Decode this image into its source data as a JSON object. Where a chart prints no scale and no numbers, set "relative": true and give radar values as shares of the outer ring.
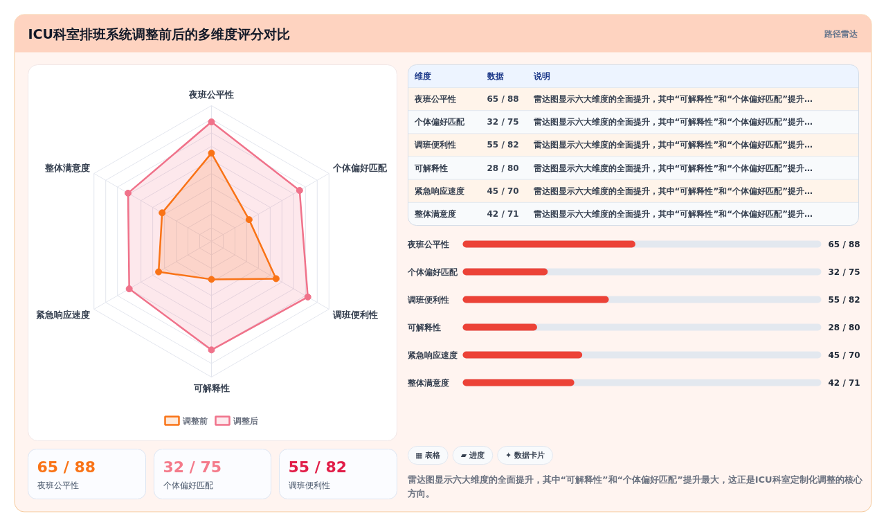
{
  "chart_data": [
    {
      "type": "other",
      "title": "ICU科室排班系统调整前后的多维度评分对比",
      "annotations": [
        "路径雷达"
      ]
    },
    {
      "type": "radar",
      "categories": [
        "夜班公平性",
        "个体偏好匹配",
        "调班便利性",
        "可解释性",
        "紧急响应速度",
        "整体满意度"
      ],
      "series": [
        {
          "name": "调整前",
          "color": "#f97316",
          "values": [
            0.65,
            0.32,
            0.55,
            0.28,
            0.45,
            0.42
          ]
        },
        {
          "name": "调整后",
          "color": "#f0728a",
          "values": [
            0.88,
            0.75,
            0.82,
            0.8,
            0.7,
            0.71
          ]
        }
      ],
      "relative": true,
      "grid": true,
      "legend": "bottom",
      "marker": "circle"
    },
    {
      "type": "other",
      "categories": [
        "维度",
        "数据",
        "说明"
      ],
      "annotations": [
        "夜班公平性",
        "65 / 88",
        "雷达图显示六大维度的全面提升，其中“可解释性”和“个体偏好匹配”提升…",
        "个体偏好匹配",
        "32 / 75",
        "雷达图显示六大维度的全面提升，其中“可解释性”和“个体偏好匹配”提升…",
        "调班便利性",
        "55 / 82",
        "雷达图显示六大维度的全面提升，其中“可解释性”和“个体偏好匹配”提升…",
        "可解释性",
        "28 / 80",
        "雷达图显示六大维度的全面提升，其中“可解释性”和“个体偏好匹配”提升…",
        "紧急响应速度",
        "45 / 70",
        "雷达图显示六大维度的全面提升，其中“可解释性”和“个体偏好匹配”提升…",
        "整体满意度",
        "42 / 71",
        "雷达图显示六大维度的全面提升，其中“可解释性”和“个体偏好匹配”提升…"
      ]
    },
    {
      "type": "bar",
      "orientation": "horizontal",
      "categories": [
        "夜班公平性",
        "个体偏好匹配",
        "调班便利性",
        "可解释性",
        "紧急响应速度",
        "整体满意度"
      ],
      "values": [
        65,
        32,
        55,
        28,
        45,
        42
      ],
      "color": "#ec4237",
      "value_labels": [
        "65 / 88",
        "32 / 75",
        "55 / 82",
        "28 / 80",
        "45 / 70",
        "42 / 71"
      ],
      "xlim": [
        0,
        135
      ]
    },
    {
      "type": "other",
      "categories": [
        "夜班公平性",
        "个体偏好匹配",
        "调班便利性"
      ],
      "value_labels": [
        "65 / 88",
        "32 / 75",
        "55 / 82"
      ]
    },
    {
      "type": "other",
      "categories": [
        "▦ 表格",
        "▰ 进度",
        "✦ 数据卡片"
      ],
      "annotations": [
        "雷达图显示六大维度的全面提升，其中“可解释性”和“个体偏好匹配”提升最大，这正是ICU科室定制化调整的核心方向。"
      ]
    }
  ]
}
